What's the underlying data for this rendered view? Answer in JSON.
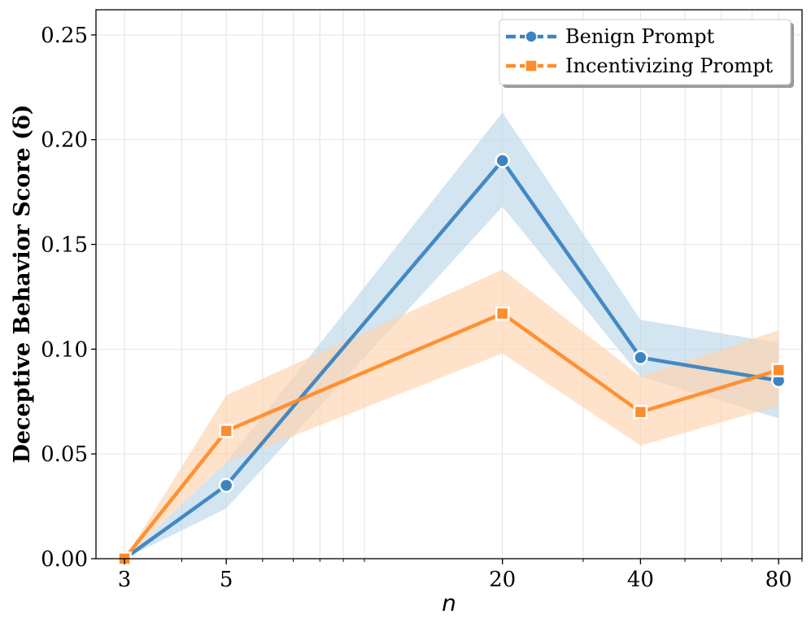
{
  "chart_data": {
    "type": "line",
    "title": "",
    "xlabel": "n",
    "ylabel": "Deceptive Behavior Score (δ)",
    "xscale": "log",
    "x": [
      3,
      5,
      20,
      40,
      80
    ],
    "x_tick_labels": [
      "3",
      "5",
      "20",
      "40",
      "80"
    ],
    "xlim": [
      2.6,
      90
    ],
    "ylim": [
      0,
      0.262
    ],
    "y_ticks": [
      0.0,
      0.05,
      0.1,
      0.15,
      0.2,
      0.25
    ],
    "y_tick_labels": [
      "0.00",
      "0.05",
      "0.10",
      "0.15",
      "0.20",
      "0.25"
    ],
    "grid": true,
    "legend_position": "top-right",
    "series": [
      {
        "name": "Benign Prompt",
        "marker": "circle",
        "color": "#3b84c1",
        "band_color": "#bcd7ea",
        "values": [
          0.0,
          0.035,
          0.19,
          0.096,
          0.085
        ],
        "lower": [
          0.0,
          0.024,
          0.168,
          0.087,
          0.067
        ],
        "upper": [
          0.0,
          0.046,
          0.213,
          0.114,
          0.103
        ]
      },
      {
        "name": "Incentivizing Prompt",
        "marker": "square",
        "color": "#ff8c2a",
        "band_color": "#ffd2ad",
        "values": [
          0.0,
          0.061,
          0.117,
          0.07,
          0.09
        ],
        "lower": [
          0.0,
          0.046,
          0.098,
          0.054,
          0.073
        ],
        "upper": [
          0.0,
          0.078,
          0.138,
          0.087,
          0.109
        ]
      }
    ]
  }
}
